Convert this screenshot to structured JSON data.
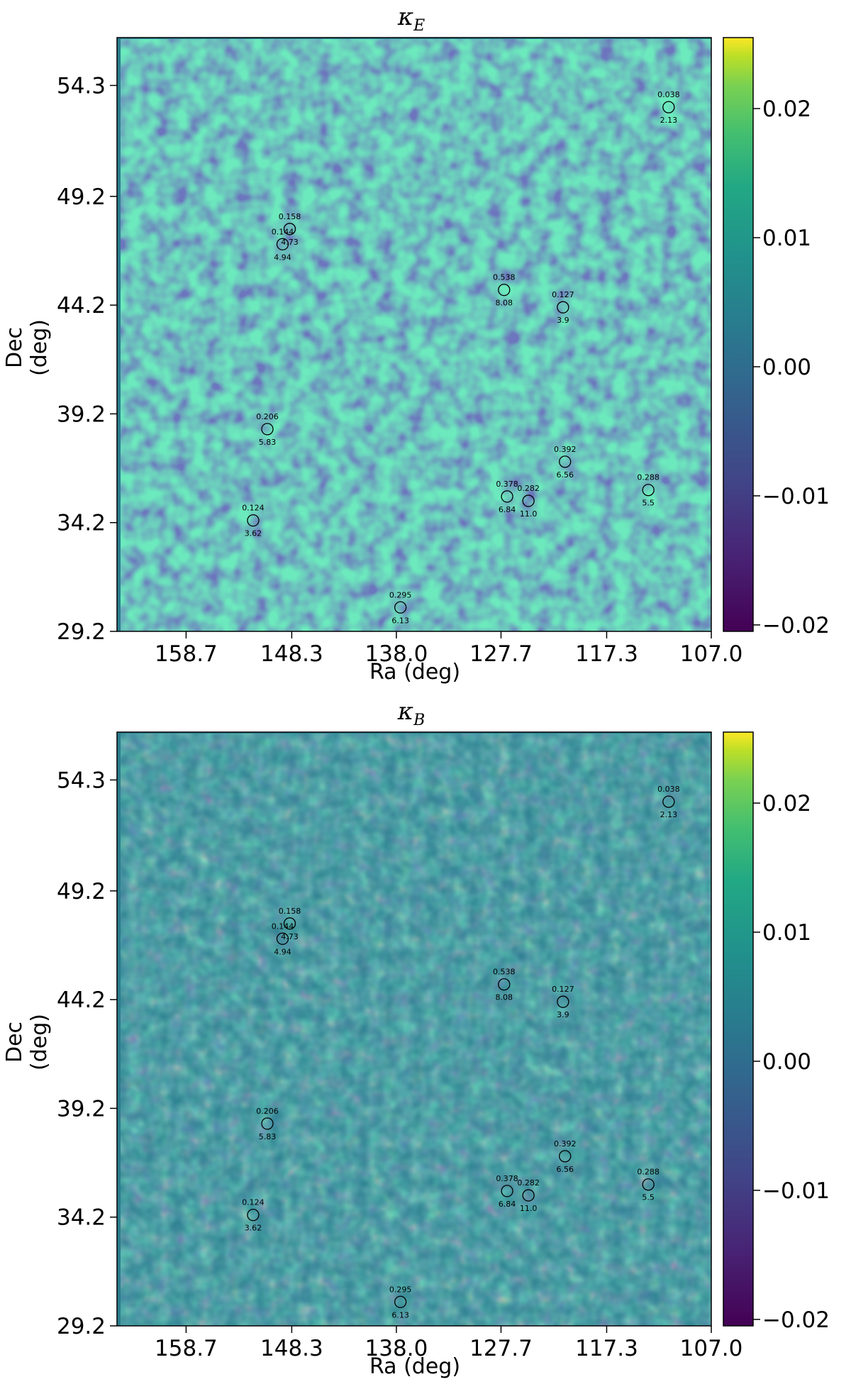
{
  "chart_data": [
    {
      "type": "heatmap",
      "title": "κE",
      "title_main": "κ",
      "title_sub": "E",
      "xlabel": "Ra (deg)",
      "ylabel": "Dec (deg)",
      "xticks": [
        "158.7",
        "148.3",
        "138.0",
        "127.7",
        "117.3",
        "107.0"
      ],
      "yticks": [
        "54.3",
        "49.2",
        "44.2",
        "39.2",
        "34.2",
        "29.2"
      ],
      "xlim": [
        165.5,
        107.0
      ],
      "ylim": [
        29.2,
        56.5
      ],
      "colorbar": {
        "ticks": [
          "0.02",
          "0.01",
          "0.00",
          "−0.01",
          "−0.02"
        ],
        "range": [
          -0.0205,
          0.0255
        ],
        "colormap": "viridis"
      },
      "grid": false,
      "clusters": [
        {
          "ra": 148.5,
          "dec": 47.7,
          "z": "0.158",
          "snr": "4.73"
        },
        {
          "ra": 149.2,
          "dec": 47.0,
          "z": "0.144",
          "snr": "4.94"
        },
        {
          "ra": 127.4,
          "dec": 44.9,
          "z": "0.538",
          "snr": "8.08"
        },
        {
          "ra": 121.6,
          "dec": 44.1,
          "z": "0.127",
          "snr": "3.9"
        },
        {
          "ra": 111.2,
          "dec": 53.3,
          "z": "0.038",
          "snr": "2.13"
        },
        {
          "ra": 150.7,
          "dec": 38.5,
          "z": "0.206",
          "snr": "5.83"
        },
        {
          "ra": 121.4,
          "dec": 37.0,
          "z": "0.392",
          "snr": "6.56"
        },
        {
          "ra": 113.2,
          "dec": 35.7,
          "z": "0.288",
          "snr": "5.5"
        },
        {
          "ra": 127.1,
          "dec": 35.4,
          "z": "0.378",
          "snr": "6.84"
        },
        {
          "ra": 125.0,
          "dec": 35.2,
          "z": "0.282",
          "snr": "11.0"
        },
        {
          "ra": 152.1,
          "dec": 34.3,
          "z": "0.124",
          "snr": "3.62"
        },
        {
          "ra": 137.6,
          "dec": 30.3,
          "z": "0.295",
          "snr": "6.13"
        }
      ]
    },
    {
      "type": "heatmap",
      "title": "κB",
      "title_main": "κ",
      "title_sub": "B",
      "xlabel": "Ra (deg)",
      "ylabel": "Dec (deg)",
      "xticks": [
        "158.7",
        "148.3",
        "138.0",
        "127.7",
        "117.3",
        "107.0"
      ],
      "yticks": [
        "54.3",
        "49.2",
        "44.2",
        "39.2",
        "34.2",
        "29.2"
      ],
      "xlim": [
        165.5,
        107.0
      ],
      "ylim": [
        29.2,
        56.5
      ],
      "colorbar": {
        "ticks": [
          "0.02",
          "0.01",
          "0.00",
          "−0.01",
          "−0.02"
        ],
        "range": [
          -0.0205,
          0.0255
        ],
        "colormap": "viridis"
      },
      "grid": false,
      "clusters": [
        {
          "ra": 148.5,
          "dec": 47.7,
          "z": "0.158",
          "snr": "4.73"
        },
        {
          "ra": 149.2,
          "dec": 47.0,
          "z": "0.144",
          "snr": "4.94"
        },
        {
          "ra": 127.4,
          "dec": 44.9,
          "z": "0.538",
          "snr": "8.08"
        },
        {
          "ra": 121.6,
          "dec": 44.1,
          "z": "0.127",
          "snr": "3.9"
        },
        {
          "ra": 111.2,
          "dec": 53.3,
          "z": "0.038",
          "snr": "2.13"
        },
        {
          "ra": 150.7,
          "dec": 38.5,
          "z": "0.206",
          "snr": "5.83"
        },
        {
          "ra": 121.4,
          "dec": 37.0,
          "z": "0.392",
          "snr": "6.56"
        },
        {
          "ra": 113.2,
          "dec": 35.7,
          "z": "0.288",
          "snr": "5.5"
        },
        {
          "ra": 127.1,
          "dec": 35.4,
          "z": "0.378",
          "snr": "6.84"
        },
        {
          "ra": 125.0,
          "dec": 35.2,
          "z": "0.282",
          "snr": "11.0"
        },
        {
          "ra": 152.1,
          "dec": 34.3,
          "z": "0.124",
          "snr": "3.62"
        },
        {
          "ra": 137.6,
          "dec": 30.3,
          "z": "0.295",
          "snr": "6.13"
        }
      ]
    }
  ]
}
